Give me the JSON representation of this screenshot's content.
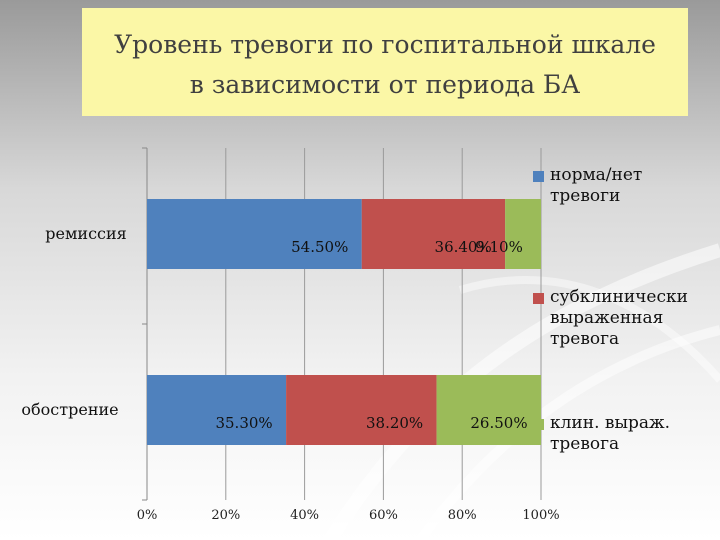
{
  "slide": {
    "title_line1": "Уровень тревоги по госпитальной шкале",
    "title_line2": "в зависимости от периода БА"
  },
  "chart_data": {
    "type": "bar",
    "orientation": "horizontal",
    "stacked": "percent",
    "categories": [
      "ремиссия",
      "обострение"
    ],
    "series": [
      {
        "name": "норма/нет тревоги",
        "color": "#4f81bd",
        "values": [
          54.5,
          35.3
        ],
        "labels": [
          "54.50%",
          "35.30%"
        ]
      },
      {
        "name": "субклинически выраженная тревога",
        "color": "#c0504d",
        "values": [
          36.4,
          38.2
        ],
        "labels": [
          "36.40%",
          "38.20%"
        ]
      },
      {
        "name": "клин. выраж. тревога",
        "color": "#9bbb59",
        "values": [
          9.1,
          26.5
        ],
        "labels": [
          "9.10%",
          "26.50%"
        ]
      }
    ],
    "xlim": [
      0,
      100
    ],
    "xticks": [
      "0%",
      "20%",
      "40%",
      "60%",
      "80%",
      "100%"
    ],
    "grid": true,
    "legend": "right"
  }
}
